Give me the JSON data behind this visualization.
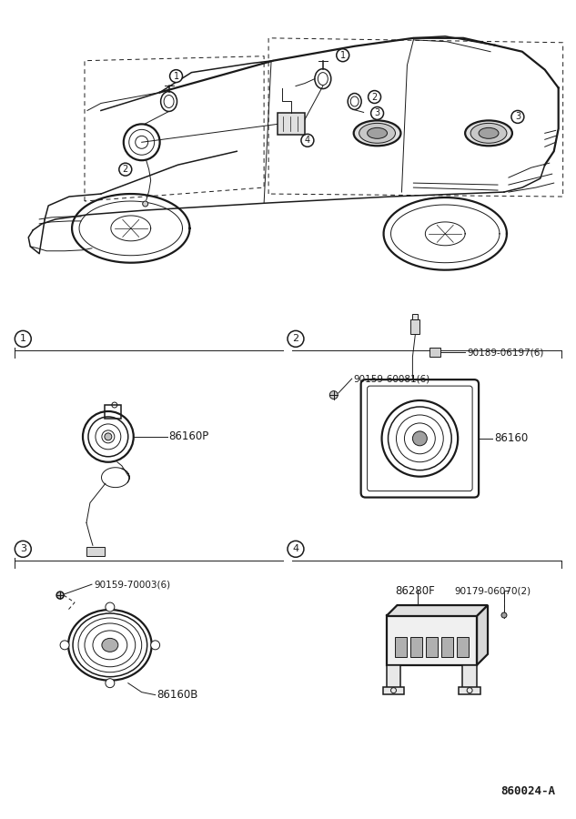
{
  "bg_color": "#ffffff",
  "line_color": "#1a1a1a",
  "part_labels": {
    "part1": "86160P",
    "part2_screw": "90159-60081(6)",
    "part2_connector": "90189-06197(6)",
    "part2_speaker": "86160",
    "part3_screw": "90159-70003(6)",
    "part3_speaker": "86160B",
    "part4_unit": "86280F",
    "part4_screw": "90179-06070(2)"
  },
  "diagram_id": "860024-A",
  "font_size_part": 8.5,
  "font_size_id": 9,
  "font_size_callout": 8
}
